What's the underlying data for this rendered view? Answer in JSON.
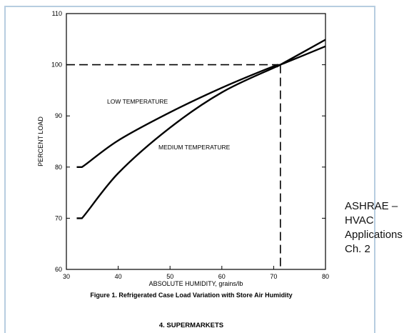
{
  "chart_data": {
    "type": "line",
    "title": "",
    "xlabel": "ABSOLUTE HUMIDITY, grains/lb",
    "ylabel": "PERCENT LOAD",
    "xlim": [
      30,
      80
    ],
    "ylim": [
      60,
      110
    ],
    "x_ticks": [
      30,
      40,
      50,
      60,
      70,
      80
    ],
    "y_ticks": [
      60,
      70,
      80,
      90,
      100,
      110
    ],
    "grid": false,
    "series": [
      {
        "name": "LOW TEMPERATURE",
        "x": [
          32,
          33,
          40,
          50,
          60,
          70,
          71.3,
          80
        ],
        "y": [
          80,
          80,
          85.2,
          90.7,
          95.5,
          99.7,
          100,
          103.6
        ]
      },
      {
        "name": "MEDIUM TEMPERATURE",
        "x": [
          32,
          33,
          40,
          50,
          60,
          70,
          71.3,
          80
        ],
        "y": [
          70,
          70,
          78.8,
          87.7,
          94.6,
          99.4,
          100,
          104.9
        ]
      }
    ],
    "reference_lines": {
      "horizontal_y": 100,
      "vertical_x": 71.3,
      "style": "dashed"
    }
  },
  "caption": "Figure 1. Refrigerated Case Load Variation with Store Air Humidity",
  "section_title": "4. SUPERMARKETS",
  "side_note": [
    "ASHRAE –",
    "HVAC",
    "Applications",
    "Ch. 2"
  ]
}
